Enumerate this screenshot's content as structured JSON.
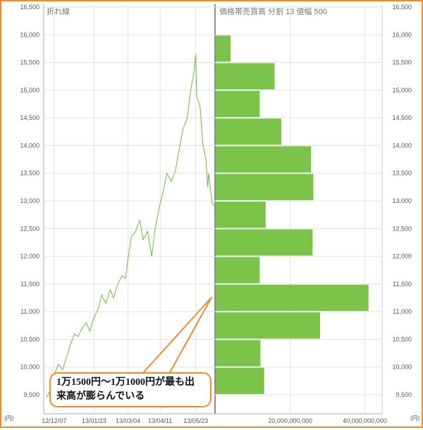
{
  "colors": {
    "accent": "#7cc34a",
    "line": "#6dbb3e",
    "grid": "#e2e2e2",
    "border": "#f08c28",
    "text": "#555555"
  },
  "panels": {
    "left_title": "折れ線",
    "right_title": "価格帯売買高 分割 13 値幅 500"
  },
  "unit_label": "(円)",
  "annotation": {
    "line1": "1万1500円～1万1000円が最も出",
    "line2": "来高が膨らんでいる"
  },
  "chart_data": [
    {
      "type": "line",
      "title": "折れ線",
      "x_tick_labels": [
        "12/12/07",
        "13/01/23",
        "13/03/04",
        "13/04/11",
        "13/05/23"
      ],
      "ylim": [
        9500,
        16500
      ],
      "y_ticks": [
        9500,
        10000,
        10500,
        11000,
        11500,
        12000,
        12500,
        13000,
        13500,
        14000,
        14500,
        15000,
        15500,
        16000,
        16500
      ],
      "y_tick_labels": [
        "9,500",
        "10,000",
        "10,500",
        "11,000",
        "11,500",
        "12,000",
        "12,500",
        "13,000",
        "13,500",
        "14,000",
        "14,500",
        "15,000",
        "15,500",
        "16,000",
        "16,500"
      ],
      "y_unit": "(円)",
      "grid": true,
      "series": [
        {
          "x": [
            "2012-11-28",
            "2012-12-03",
            "2012-12-07",
            "2012-12-12",
            "2012-12-17",
            "2012-12-21",
            "2012-12-26",
            "2012-12-31",
            "2013-01-04",
            "2013-01-09",
            "2013-01-14",
            "2013-01-18",
            "2013-01-23",
            "2013-01-28",
            "2013-02-01",
            "2013-02-06",
            "2013-02-11",
            "2013-02-15",
            "2013-02-20",
            "2013-02-25",
            "2013-03-01",
            "2013-03-04",
            "2013-03-08",
            "2013-03-13",
            "2013-03-18",
            "2013-03-22",
            "2013-03-27",
            "2013-04-01",
            "2013-04-05",
            "2013-04-11",
            "2013-04-15",
            "2013-04-19",
            "2013-04-24",
            "2013-04-29",
            "2013-05-03",
            "2013-05-08",
            "2013-05-13",
            "2013-05-17",
            "2013-05-21",
            "2013-05-23",
            "2013-05-24",
            "2013-05-28",
            "2013-05-31",
            "2013-06-04",
            "2013-06-06",
            "2013-06-07",
            "2013-06-11",
            "2013-06-13"
          ],
          "values": [
            9450,
            9600,
            9850,
            10050,
            9950,
            10150,
            10400,
            10600,
            10550,
            10700,
            10800,
            10650,
            10900,
            11050,
            11300,
            11150,
            11400,
            11250,
            11500,
            11650,
            11600,
            11950,
            12350,
            12450,
            12650,
            12300,
            12450,
            12000,
            12500,
            12950,
            13200,
            13500,
            13350,
            13550,
            13900,
            14300,
            14500,
            15000,
            15350,
            15650,
            14900,
            14700,
            14050,
            13750,
            13250,
            13500,
            13000,
            12900
          ]
        }
      ]
    },
    {
      "type": "bar",
      "orientation": "horizontal",
      "title": "価格帯売買高 分割 13 値幅 500",
      "categories": [
        "9,500-10,000",
        "10,000-10,500",
        "10,500-11,000",
        "11,000-11,500",
        "11,500-12,000",
        "12,000-12,500",
        "12,500-13,000",
        "13,000-13,500",
        "13,500-14,000",
        "14,000-14,500",
        "14,500-15,000",
        "15,000-15,500",
        "15,500-16,000"
      ],
      "values": [
        13000000000,
        12000000000,
        28000000000,
        41000000000,
        11800000000,
        26000000000,
        13400000000,
        26200000000,
        25600000000,
        17600000000,
        11800000000,
        15800000000,
        4000000000
      ],
      "x_tick_labels": [
        "20,000,000,000",
        "40,000,000,000"
      ],
      "x_ticks": [
        20000000000,
        40000000000
      ],
      "xlim": [
        0,
        42000000000
      ],
      "ylim": [
        9500,
        16500
      ],
      "y_unit": "(円)"
    }
  ]
}
